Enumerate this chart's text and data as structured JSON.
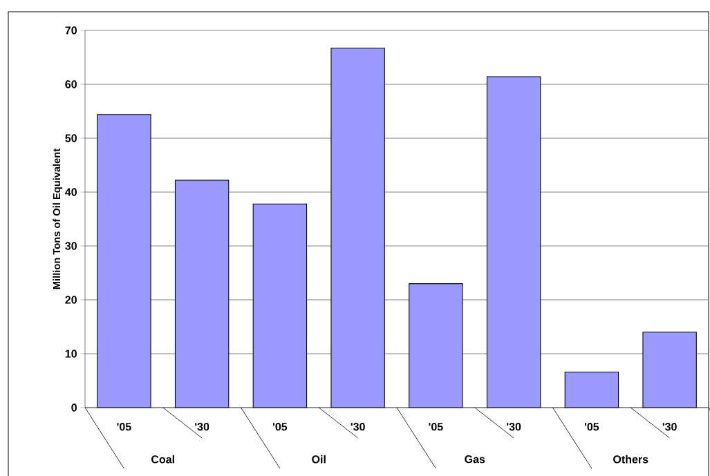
{
  "chart_data": {
    "type": "bar",
    "ylabel": "Million Tons of Oil Equivalent",
    "categories": [
      "'05",
      "'30",
      "'05",
      "'30",
      "'05",
      "'30",
      "'05",
      "'30"
    ],
    "values": [
      54.4,
      42.2,
      37.8,
      66.7,
      23,
      61.4,
      6.6,
      14
    ],
    "color": "#9999ff",
    "ylim": [
      0,
      70
    ],
    "yticks": [
      0,
      10,
      20,
      30,
      40,
      50,
      60,
      70
    ],
    "grid": "y",
    "annotations": [
      "Coal",
      "Oil",
      "Gas",
      "Others"
    ]
  }
}
